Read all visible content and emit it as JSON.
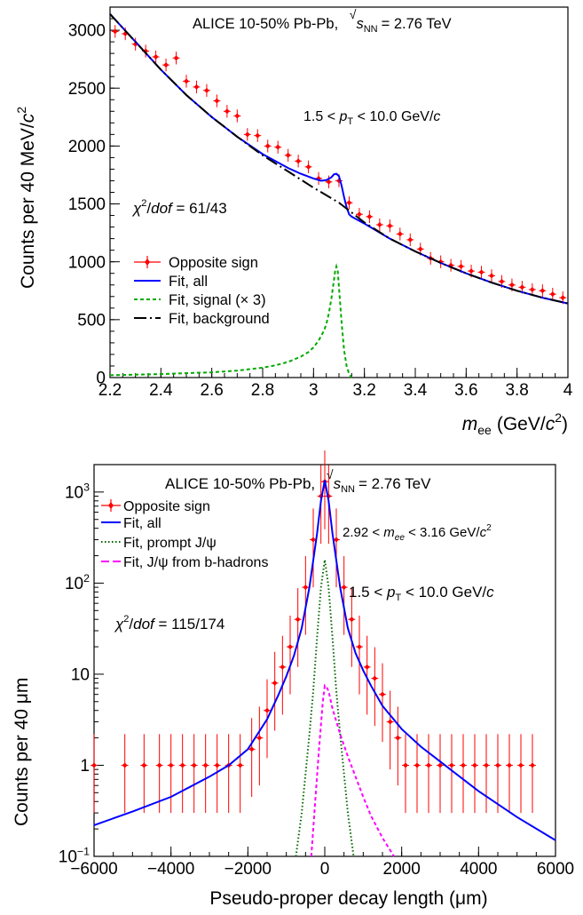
{
  "chart_data": [
    {
      "type": "line",
      "header": {
        "main": "ALICE 10-50% Pb-Pb,",
        "sqrt": "s",
        "sub": "NN",
        "energy": "= 2.76 TeV"
      },
      "xlabel": {
        "var": "m",
        "sub": "ee",
        "unit_pre": "(GeV/",
        "unit_c": "c",
        "unit_exp": "2",
        "unit_post": ")"
      },
      "ylabel": {
        "pre": "Counts per 40 MeV/",
        "c": "c",
        "exp": "2"
      },
      "xlim": [
        2.2,
        4.0
      ],
      "ylim": [
        0,
        3200
      ],
      "x_ticks": [
        "2.2",
        "2.4",
        "2.6",
        "2.8",
        "3",
        "3.2",
        "3.4",
        "3.6",
        "3.8",
        "4"
      ],
      "x_tick_values": [
        2.2,
        2.4,
        2.6,
        2.8,
        3.0,
        3.2,
        3.4,
        3.6,
        3.8,
        4.0
      ],
      "y_ticks": [
        "0",
        "500",
        "1000",
        "1500",
        "2000",
        "2500",
        "3000"
      ],
      "y_tick_values": [
        0,
        500,
        1000,
        1500,
        2000,
        2500,
        3000
      ],
      "annotations": {
        "pt": {
          "pre": "1.5 < ",
          "var": "p",
          "sub": "T",
          "post": " < 10.0 GeV/",
          "c": "c"
        },
        "chi2": {
          "chi": "χ",
          "exp": "2",
          "slash": "/",
          "dof": "dof",
          "value": " = 61/43"
        }
      },
      "legend": {
        "placement": "lower-left",
        "entries": [
          "Opposite sign",
          "Fit, all",
          "Fit, signal (× 3)",
          "Fit, background"
        ]
      },
      "colors": {
        "data": "#ff0000",
        "fit_all": "#0000ff",
        "signal": "#00aa00",
        "background": "#000000"
      },
      "series": [
        {
          "name": "Opposite sign",
          "kind": "points",
          "x": [
            2.22,
            2.26,
            2.3,
            2.34,
            2.38,
            2.42,
            2.46,
            2.5,
            2.54,
            2.58,
            2.62,
            2.66,
            2.7,
            2.74,
            2.78,
            2.82,
            2.86,
            2.9,
            2.94,
            2.98,
            3.02,
            3.06,
            3.1,
            3.14,
            3.18,
            3.22,
            3.26,
            3.3,
            3.34,
            3.38,
            3.42,
            3.46,
            3.5,
            3.54,
            3.58,
            3.62,
            3.66,
            3.7,
            3.74,
            3.78,
            3.82,
            3.86,
            3.9,
            3.94,
            3.98
          ],
          "y": [
            2990,
            2970,
            2880,
            2820,
            2770,
            2700,
            2760,
            2560,
            2510,
            2480,
            2390,
            2300,
            2260,
            2100,
            2090,
            2000,
            1990,
            1920,
            1870,
            1820,
            1720,
            1690,
            1700,
            1510,
            1410,
            1390,
            1320,
            1310,
            1240,
            1190,
            1110,
            1030,
            1000,
            970,
            960,
            920,
            910,
            880,
            830,
            800,
            780,
            760,
            750,
            720,
            690
          ],
          "yerr": 55
        },
        {
          "name": "Fit, all",
          "kind": "line",
          "x": [
            2.2,
            2.3,
            2.4,
            2.5,
            2.6,
            2.7,
            2.8,
            2.9,
            2.95,
            3.0,
            3.03,
            3.05,
            3.07,
            3.08,
            3.09,
            3.1,
            3.11,
            3.12,
            3.13,
            3.14,
            3.15,
            3.2,
            3.3,
            3.4,
            3.5,
            3.6,
            3.7,
            3.8,
            3.9,
            4.0
          ],
          "y": [
            3140,
            2900,
            2660,
            2440,
            2250,
            2080,
            1930,
            1810,
            1760,
            1720,
            1700,
            1705,
            1730,
            1755,
            1760,
            1740,
            1660,
            1560,
            1470,
            1410,
            1390,
            1330,
            1200,
            1090,
            990,
            900,
            820,
            750,
            690,
            640
          ]
        },
        {
          "name": "Fit, signal (× 3)",
          "kind": "dashed",
          "x": [
            2.2,
            2.4,
            2.6,
            2.7,
            2.8,
            2.85,
            2.9,
            2.95,
            2.98,
            3.0,
            3.02,
            3.04,
            3.05,
            3.06,
            3.07,
            3.08,
            3.085,
            3.09,
            3.095,
            3.1,
            3.11,
            3.12,
            3.13,
            3.14,
            3.15
          ],
          "y": [
            20,
            30,
            45,
            60,
            85,
            105,
            135,
            180,
            220,
            260,
            320,
            400,
            460,
            550,
            680,
            840,
            920,
            960,
            920,
            780,
            480,
            240,
            100,
            30,
            0
          ]
        },
        {
          "name": "Fit, background",
          "kind": "dashdot",
          "x": [
            2.2,
            2.3,
            2.4,
            2.5,
            2.6,
            2.7,
            2.8,
            2.9,
            3.0,
            3.1,
            3.2,
            3.3,
            3.4,
            3.5,
            3.6,
            3.7,
            3.8,
            3.9,
            4.0
          ],
          "y": [
            3140,
            2900,
            2660,
            2440,
            2250,
            2080,
            1920,
            1780,
            1640,
            1510,
            1340,
            1200,
            1090,
            990,
            900,
            820,
            750,
            690,
            640
          ]
        }
      ]
    },
    {
      "type": "line",
      "header": {
        "main": "ALICE 10-50% Pb-Pb,",
        "sqrt": "s",
        "sub": "NN",
        "energy": "= 2.76 TeV"
      },
      "xlabel": {
        "text": "Pseudo-proper decay length (μm)"
      },
      "ylabel": {
        "text": "Counts per 40 μm"
      },
      "xlim": [
        -6000,
        6000
      ],
      "ylim": [
        0.1,
        2000
      ],
      "yscale": "log",
      "x_ticks": [
        "−6000",
        "−4000",
        "−2000",
        "0",
        "2000",
        "4000",
        "6000"
      ],
      "x_tick_values": [
        -6000,
        -4000,
        -2000,
        0,
        2000,
        4000,
        6000
      ],
      "y_ticks": [
        "1",
        "10"
      ],
      "y_tick_values": [
        1,
        10
      ],
      "y_tick_pow": [
        {
          "base": "10",
          "exp": "−1",
          "value": 0.1
        },
        {
          "base": "10",
          "exp": "2",
          "value": 100
        },
        {
          "base": "10",
          "exp": "3",
          "value": 1000
        }
      ],
      "annotations": {
        "mass": {
          "pre": "2.92 < ",
          "var": "m",
          "sub": "ee",
          "post": " < 3.16 GeV/",
          "c": "c",
          "exp": "2"
        },
        "pt": {
          "pre": "1.5 < ",
          "var": "p",
          "sub": "T",
          "post": " < 10.0 GeV/",
          "c": "c"
        },
        "chi2": {
          "chi": "χ",
          "exp": "2",
          "slash": "/",
          "dof": "dof",
          "value": " = 115/174"
        }
      },
      "legend": {
        "placement": "top-left",
        "entries": [
          "Opposite sign",
          "Fit, all",
          "Fit, prompt J/ψ",
          "Fit, J/ψ from b-hadrons"
        ]
      },
      "colors": {
        "data": "#ff0000",
        "fit_all": "#0000ff",
        "prompt": "#006600",
        "bhadrons": "#ff00ff"
      },
      "series": [
        {
          "name": "Opposite sign",
          "kind": "points",
          "x": [
            -6000,
            -5200,
            -4700,
            -4300,
            -4000,
            -3700,
            -3400,
            -3100,
            -2800,
            -2500,
            -2200,
            -1900,
            -1700,
            -1500,
            -1300,
            -1100,
            -900,
            -700,
            -500,
            -300,
            -100,
            0,
            100,
            300,
            500,
            700,
            900,
            1100,
            1300,
            1500,
            1700,
            1900,
            2100,
            2400,
            2700,
            3000,
            3300,
            3600,
            3900,
            4200,
            4500,
            4800,
            5100,
            5400
          ],
          "y": [
            1,
            1,
            1,
            1,
            1,
            1,
            1,
            1,
            1,
            1,
            1,
            1.5,
            2,
            4,
            8,
            12,
            20,
            40,
            90,
            300,
            900,
            1300,
            900,
            300,
            90,
            40,
            20,
            12,
            9,
            6,
            3,
            2,
            1,
            1,
            1,
            1,
            1,
            1,
            1,
            1,
            1,
            1,
            1,
            1
          ],
          "yerr_lo_factor": 0.3,
          "yerr_hi_factor": 2.2
        },
        {
          "name": "Fit, all",
          "kind": "line",
          "x": [
            -6000,
            -5000,
            -4000,
            -3000,
            -2500,
            -2000,
            -1500,
            -1200,
            -1000,
            -800,
            -600,
            -400,
            -200,
            -100,
            0,
            100,
            200,
            400,
            600,
            800,
            1000,
            1200,
            1500,
            2000,
            2500,
            3000,
            4000,
            5000,
            6000
          ],
          "y": [
            0.22,
            0.31,
            0.45,
            0.75,
            1.0,
            1.5,
            3.2,
            6.0,
            9.5,
            16,
            32,
            90,
            350,
            800,
            1350,
            800,
            350,
            90,
            32,
            17,
            11,
            7.5,
            4.5,
            2.5,
            1.6,
            1.1,
            0.52,
            0.27,
            0.15
          ]
        },
        {
          "name": "Fit, prompt J/ψ",
          "kind": "dotted",
          "x": [
            -750,
            -600,
            -500,
            -400,
            -300,
            -200,
            -100,
            0,
            100,
            200,
            300,
            400,
            500,
            600,
            750
          ],
          "y": [
            0.1,
            0.3,
            0.8,
            2.2,
            6.5,
            25,
            90,
            180,
            90,
            25,
            6.5,
            2.2,
            0.8,
            0.3,
            0.1
          ]
        },
        {
          "name": "Fit, J/ψ from b-hadrons",
          "kind": "dashed",
          "x": [
            -350,
            -250,
            -150,
            -50,
            0,
            50,
            100,
            200,
            400,
            600,
            800,
            1000,
            1200,
            1500,
            1800
          ],
          "y": [
            0.1,
            0.4,
            1.5,
            5.0,
            7.5,
            7.2,
            6.5,
            4.2,
            2.2,
            1.25,
            0.75,
            0.45,
            0.28,
            0.16,
            0.1
          ]
        }
      ]
    }
  ]
}
